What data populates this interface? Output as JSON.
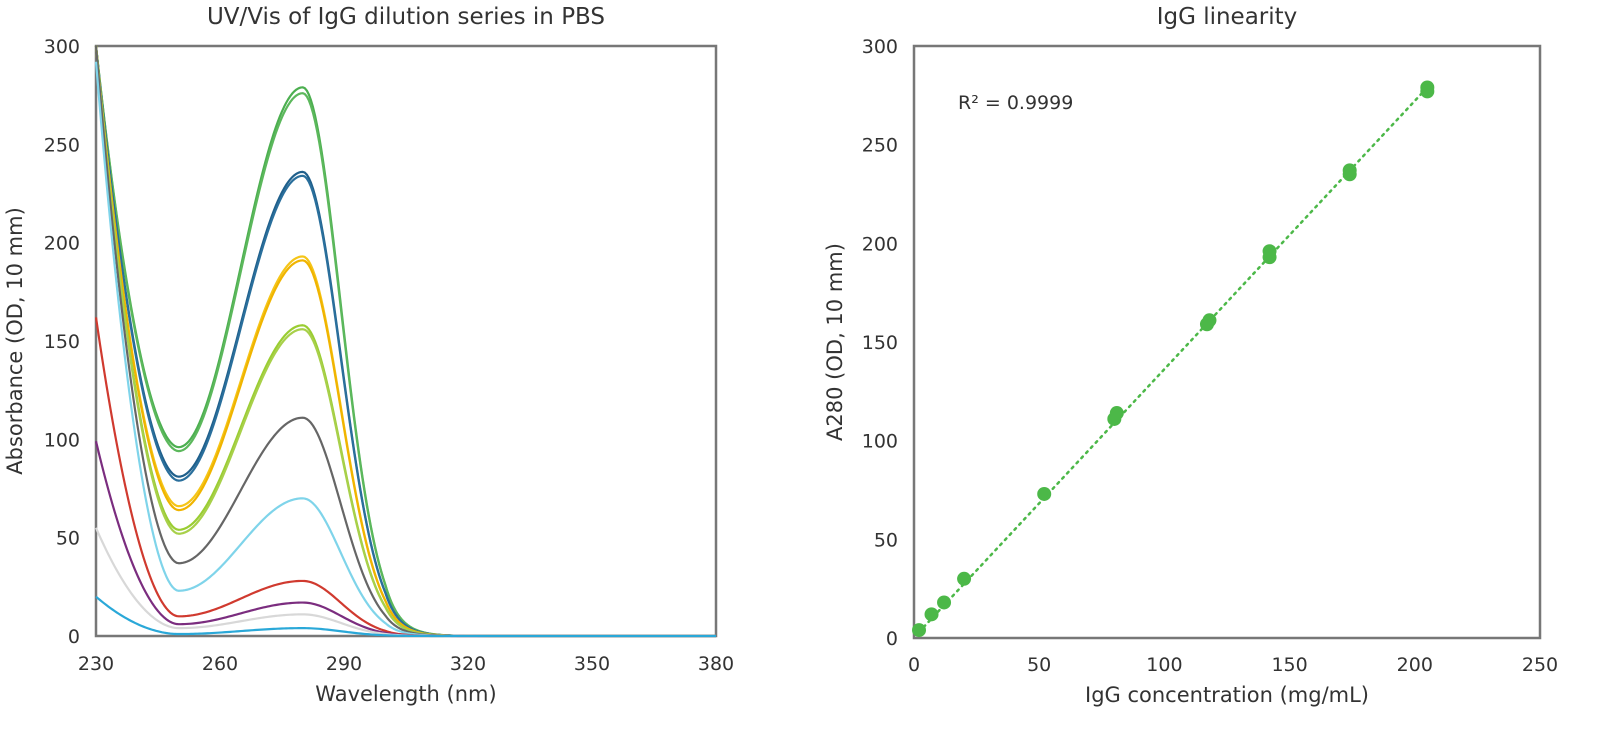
{
  "chart_data": [
    {
      "type": "line",
      "title": "UV/Vis of IgG dilution series in PBS",
      "xlabel": "Wavelength (nm)",
      "ylabel": "Absorbance (OD, 10 mm)",
      "xlim": [
        230,
        380
      ],
      "ylim": [
        0,
        300
      ],
      "xticks": [
        230,
        260,
        290,
        320,
        350,
        380
      ],
      "yticks": [
        0,
        50,
        100,
        150,
        200,
        250,
        300
      ],
      "grid": false,
      "legend": "none",
      "series": [
        {
          "color": "#4caf50",
          "peak_280": 279,
          "min_250": 96,
          "value_230": 300
        },
        {
          "color": "#5cb85c",
          "peak_280": 276,
          "min_250": 94,
          "value_230": 300
        },
        {
          "color": "#1f5f8b",
          "peak_280": 236,
          "min_250": 81,
          "value_230": 300
        },
        {
          "color": "#2a6f9c",
          "peak_280": 234,
          "min_250": 79,
          "value_230": 300
        },
        {
          "color": "#f5c518",
          "peak_280": 193,
          "min_250": 66,
          "value_230": 300
        },
        {
          "color": "#f0b400",
          "peak_280": 191,
          "min_250": 64,
          "value_230": 300
        },
        {
          "color": "#9acd32",
          "peak_280": 158,
          "min_250": 54,
          "value_230": 300
        },
        {
          "color": "#a8d04a",
          "peak_280": 156,
          "min_250": 52,
          "value_230": 300
        },
        {
          "color": "#666666",
          "peak_280": 111,
          "min_250": 37,
          "value_230": 300
        },
        {
          "color": "#7fd4ea",
          "peak_280": 70,
          "min_250": 23,
          "value_230": 292
        },
        {
          "color": "#d03a2f",
          "peak_280": 28,
          "min_250": 10,
          "value_230": 162
        },
        {
          "color": "#7b2d7f",
          "peak_280": 17,
          "min_250": 6,
          "value_230": 99
        },
        {
          "color": "#d8d8d8",
          "peak_280": 11,
          "min_250": 4,
          "value_230": 55
        },
        {
          "color": "#2aa8d8",
          "peak_280": 4,
          "min_250": 1,
          "value_230": 20
        }
      ]
    },
    {
      "type": "scatter",
      "title": "IgG linearity",
      "xlabel": "IgG concentration (mg/mL)",
      "ylabel": "A280 (OD, 10 mm)",
      "xlim": [
        0,
        250
      ],
      "ylim": [
        0,
        300
      ],
      "xticks": [
        0,
        50,
        100,
        150,
        200,
        250
      ],
      "yticks": [
        0,
        50,
        100,
        150,
        200,
        250,
        300
      ],
      "grid": false,
      "legend": "none",
      "annotation": "R² = 0.9999",
      "fit": {
        "style": "dotted",
        "x": [
          2,
          205
        ],
        "y": [
          3,
          279
        ]
      },
      "series": [
        {
          "color": "#4cb848",
          "x": [
            2,
            7,
            12,
            20,
            52,
            80,
            81,
            117,
            118,
            142,
            142,
            174,
            174,
            205,
            205
          ],
          "y": [
            4,
            12,
            18,
            30,
            73,
            111,
            114,
            159,
            161,
            193,
            196,
            235,
            237,
            277,
            279
          ]
        }
      ]
    }
  ]
}
